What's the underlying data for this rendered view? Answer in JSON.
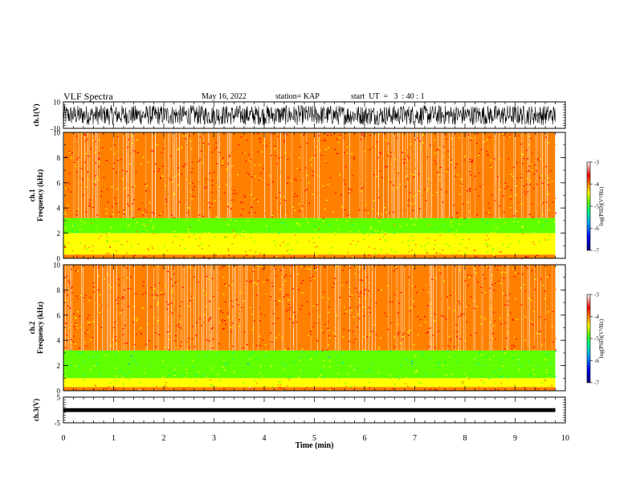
{
  "header": {
    "title": "VLF Spectra",
    "date": "May 16, 2022",
    "station": "station= KAP",
    "start": "start  UT  =   3  : 40 : 1"
  },
  "chart_data": [
    {
      "type": "line",
      "name": "ch1-waveform",
      "ylabel": "ch.1(V)",
      "ylim": [
        -10,
        10
      ],
      "xlim": [
        0,
        10
      ],
      "xlabel": "Time  (min)",
      "y_ticks": [
        "10",
        "-10"
      ],
      "data_extent_min": 9.8,
      "envelope": {
        "center": 0.0,
        "upper": 7.5,
        "lower": -7.5
      }
    },
    {
      "type": "heatmap",
      "name": "ch1-spectrogram",
      "ylabel": "ch.1\nFrequency  (kHz)",
      "ylim": [
        0,
        10
      ],
      "y_ticks": [
        "0",
        "2",
        "4",
        "6",
        "8",
        "10"
      ],
      "xlim": [
        0,
        10
      ],
      "data_extent_min": 9.8,
      "bands_khz": [
        {
          "from": 0.0,
          "to": 0.3,
          "level": -3.8
        },
        {
          "from": 0.3,
          "to": 1.0,
          "level": -4.3
        },
        {
          "from": 1.0,
          "to": 2.0,
          "level": -4.6
        },
        {
          "from": 2.0,
          "to": 3.2,
          "level": -4.8
        },
        {
          "from": 3.2,
          "to": 10.0,
          "level": -3.9
        }
      ],
      "colorbar": {
        "label": "log(PSD)(V²/Hz)",
        "min": -7,
        "max": -3,
        "ticks": [
          "-3",
          "-4",
          "-5",
          "-6",
          "-7"
        ]
      }
    },
    {
      "type": "heatmap",
      "name": "ch2-spectrogram",
      "ylabel": "ch.2\nFrequency  (kHz)",
      "ylim": [
        0,
        10
      ],
      "y_ticks": [
        "0",
        "2",
        "4",
        "6",
        "8",
        "10"
      ],
      "xlim": [
        0,
        10
      ],
      "data_extent_min": 9.8,
      "bands_khz": [
        {
          "from": 0.0,
          "to": 0.3,
          "level": -3.8
        },
        {
          "from": 0.3,
          "to": 1.0,
          "level": -4.5
        },
        {
          "from": 1.0,
          "to": 2.0,
          "level": -5.0
        },
        {
          "from": 2.0,
          "to": 3.2,
          "level": -5.2
        },
        {
          "from": 3.2,
          "to": 10.0,
          "level": -3.9
        }
      ],
      "colorbar": {
        "label": "log(PSD)(V²/Hz)",
        "min": -7,
        "max": -3,
        "ticks": [
          "-3",
          "-4",
          "-5",
          "-6",
          "-7"
        ]
      }
    },
    {
      "type": "line",
      "name": "ch3-waveform",
      "ylabel": "ch.3(V)",
      "ylim": [
        -5,
        5
      ],
      "y_ticks": [
        "5",
        "-5"
      ],
      "xlim": [
        0,
        10
      ],
      "data_extent_min": 9.8,
      "band": {
        "upper": 0.7,
        "lower": -0.8
      }
    }
  ],
  "x_axis": {
    "label": "Time  (min)",
    "ticks": [
      "0",
      "1",
      "2",
      "3",
      "4",
      "5",
      "6",
      "7",
      "8",
      "9",
      "10"
    ]
  },
  "colors": {
    "axis": "#000000",
    "trace": "#000000",
    "colormap": [
      "#000080",
      "#0000ff",
      "#00a0ff",
      "#00ff80",
      "#60ff00",
      "#ffff00",
      "#ff8000",
      "#ff0000",
      "#ffffff"
    ]
  }
}
